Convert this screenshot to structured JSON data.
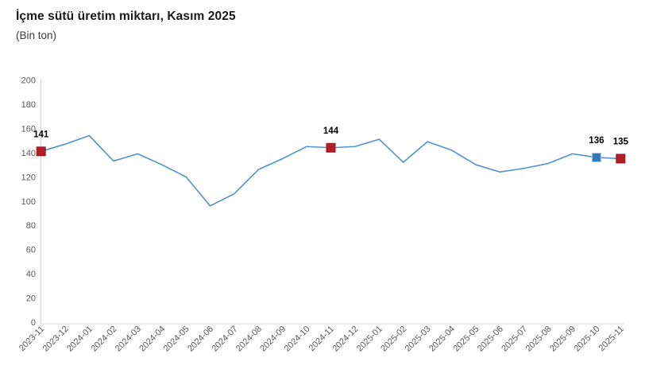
{
  "header": {
    "title": "İçme sütü üretim miktarı, Kasım 2025",
    "subtitle": "(Bin ton)"
  },
  "colors": {
    "line": "#5292CC",
    "axis": "#D5D5D5",
    "tick_label": "#595959",
    "data_label": "#000000",
    "marker_red": "#B11E26",
    "marker_red_border": "#8F1B22",
    "marker_blue": "#3179B7",
    "marker_blue_border": "#A7C9E5"
  },
  "chart_data": {
    "type": "line",
    "title": "İçme sütü üretim miktarı, Kasım 2025",
    "subtitle": "(Bin ton)",
    "unit": "Bin ton",
    "categories": [
      "2023-11",
      "2023-12",
      "2024-01",
      "2024-02",
      "2024-03",
      "2024-04",
      "2024-05",
      "2024-06",
      "2024-07",
      "2024-08",
      "2024-09",
      "2024-10",
      "2024-11",
      "2024-12",
      "2025-01",
      "2025-02",
      "2025-03",
      "2025-04",
      "2025-05",
      "2025-06",
      "2025-07",
      "2025-08",
      "2025-09",
      "2025-10",
      "2025-11"
    ],
    "values": [
      141,
      147,
      154,
      133,
      139,
      130,
      120,
      96,
      106,
      126,
      135,
      145,
      144,
      145,
      151,
      132,
      149,
      142,
      130,
      124,
      127,
      131,
      139,
      136,
      135
    ],
    "ylim": [
      0,
      200
    ],
    "ytick_step": 20,
    "grid": false,
    "legend": "none",
    "annotations": [
      {
        "index": 0,
        "label": "141",
        "marker": "square",
        "color": "#B11E26",
        "border": "#8F1B22"
      },
      {
        "index": 12,
        "label": "144",
        "marker": "square",
        "color": "#B11E26",
        "border": "#8F1B22"
      },
      {
        "index": 23,
        "label": "136",
        "marker": "square",
        "color": "#3179B7",
        "border": "#A7C9E5"
      },
      {
        "index": 24,
        "label": "135",
        "marker": "square",
        "color": "#B11E26",
        "border": "#8F1B22"
      }
    ]
  }
}
